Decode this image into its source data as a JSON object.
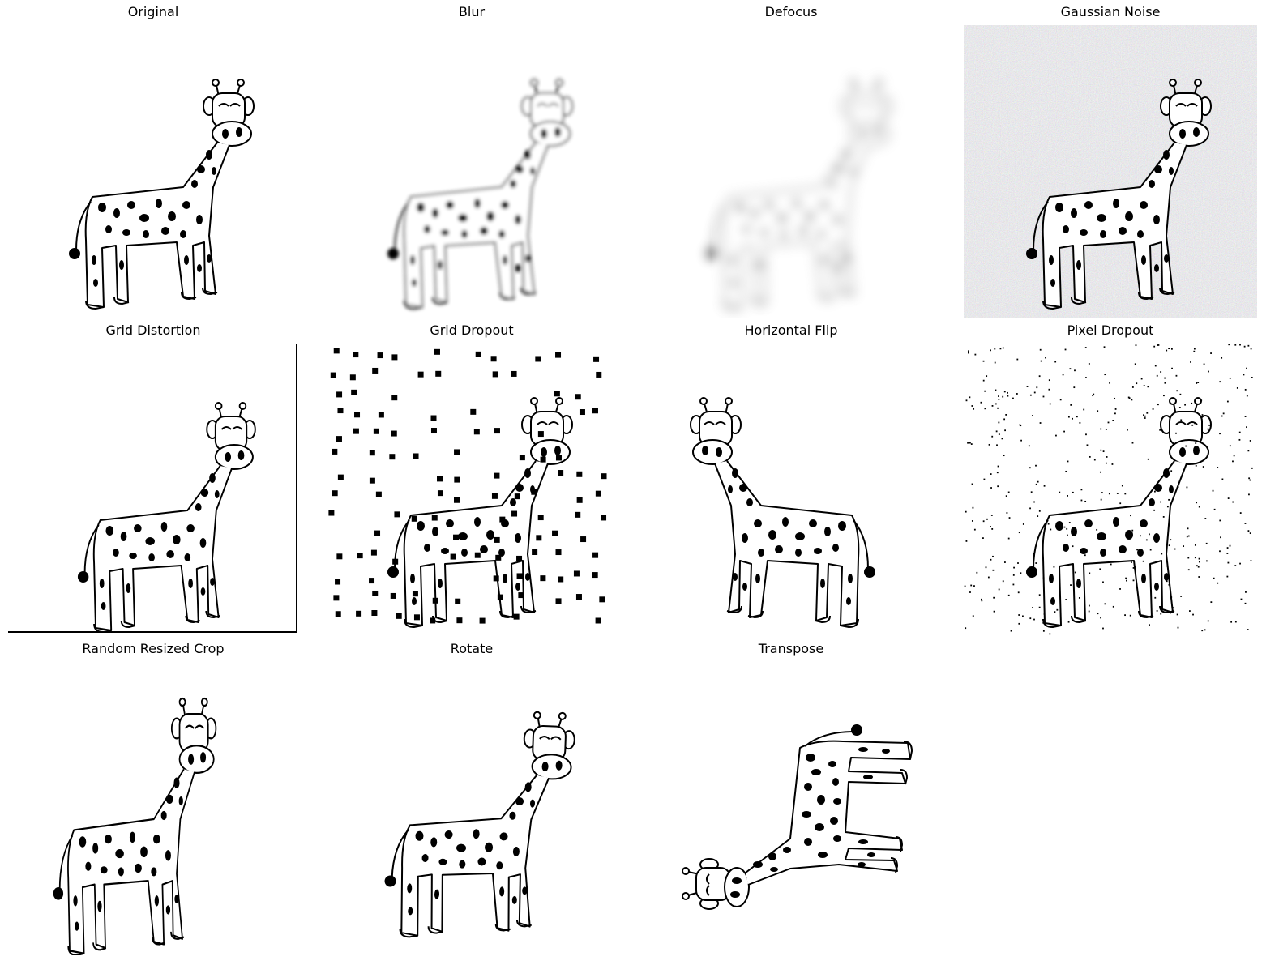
{
  "panels": [
    {
      "id": "original",
      "title": "Original"
    },
    {
      "id": "blur",
      "title": "Blur"
    },
    {
      "id": "defocus",
      "title": "Defocus"
    },
    {
      "id": "gaussian-noise",
      "title": "Gaussian Noise"
    },
    {
      "id": "grid-distortion",
      "title": "Grid Distortion"
    },
    {
      "id": "grid-dropout",
      "title": "Grid Dropout"
    },
    {
      "id": "horizontal-flip",
      "title": "Horizontal Flip"
    },
    {
      "id": "pixel-dropout",
      "title": "Pixel Dropout"
    },
    {
      "id": "random-resized-crop",
      "title": "Random Resized Crop"
    },
    {
      "id": "rotate",
      "title": "Rotate"
    },
    {
      "id": "transpose",
      "title": "Transpose"
    }
  ],
  "colors": {
    "ink": "#000000",
    "background": "#ffffff"
  }
}
